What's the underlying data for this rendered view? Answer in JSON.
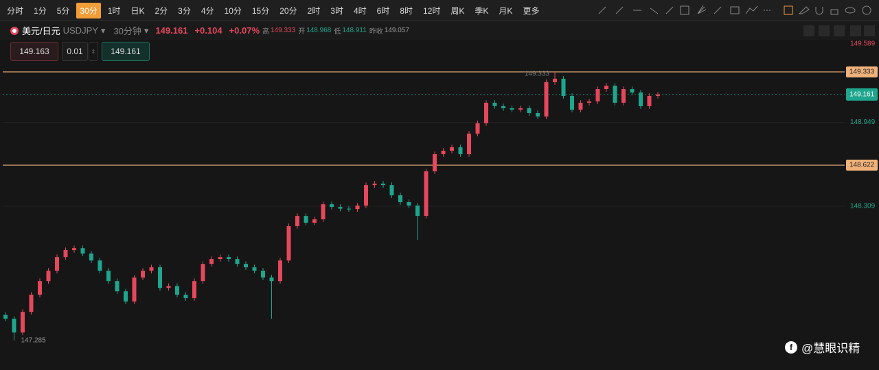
{
  "toolbar": {
    "timeframes": [
      "分时",
      "1分",
      "5分",
      "30分",
      "1时",
      "日K",
      "2分",
      "3分",
      "4分",
      "10分",
      "15分",
      "20分",
      "2时",
      "3时",
      "4时",
      "6时",
      "8时",
      "12时",
      "周K",
      "季K",
      "月K",
      "更多"
    ],
    "active": 3
  },
  "symbol_bar": {
    "name": "美元/日元",
    "code": "USDJPY",
    "period": "30分钟",
    "price": "149.161",
    "change": "+0.104",
    "change_pct": "+0.07%",
    "stats": [
      {
        "label": "高",
        "value": "149.333"
      },
      {
        "label": "开",
        "value": "148.968"
      },
      {
        "label": "低",
        "value": "148.911"
      },
      {
        "label": "昨收",
        "value": "149.057"
      }
    ]
  },
  "order": {
    "sell": "149.163",
    "lot": "0.01",
    "buy": "149.161"
  },
  "watermark": "@慧眼识精",
  "chart_data": {
    "type": "candlestick",
    "open": [
      147.48,
      147.451,
      147.346,
      147.503,
      147.634,
      147.738,
      147.817,
      147.921,
      147.974,
      147.989,
      147.948,
      147.895,
      147.817,
      147.738,
      147.66,
      147.582,
      147.765,
      147.817,
      147.843,
      147.686,
      147.7,
      147.634,
      147.608,
      147.738,
      147.869,
      147.906,
      147.921,
      147.906,
      147.869,
      147.843,
      147.817,
      147.765,
      147.738,
      147.895,
      148.157,
      148.235,
      148.183,
      148.209,
      148.324,
      148.303,
      148.29,
      148.287,
      148.314,
      148.47,
      148.481,
      148.47,
      148.392,
      148.34,
      148.314,
      148.235,
      148.575,
      148.706,
      148.732,
      148.758,
      148.706,
      148.862,
      148.941,
      149.098,
      149.072,
      149.056,
      149.045,
      149.056,
      149.019,
      148.993,
      149.255,
      149.281,
      149.15,
      149.045,
      149.098,
      149.108,
      149.202,
      149.228,
      149.098,
      149.202,
      149.176,
      149.072,
      149.15
    ],
    "high": [
      147.5,
      147.471,
      147.523,
      147.654,
      147.758,
      147.837,
      147.941,
      147.994,
      148.009,
      148.009,
      147.968,
      147.915,
      147.837,
      147.758,
      147.68,
      147.785,
      147.837,
      147.863,
      147.863,
      147.72,
      147.72,
      147.654,
      147.758,
      147.889,
      147.926,
      147.941,
      147.941,
      147.926,
      147.889,
      147.863,
      147.837,
      147.785,
      147.915,
      148.177,
      148.255,
      148.255,
      148.229,
      148.344,
      148.344,
      148.323,
      148.31,
      148.334,
      148.49,
      148.501,
      148.501,
      148.49,
      148.412,
      148.36,
      148.334,
      148.595,
      148.726,
      148.752,
      148.778,
      148.778,
      148.882,
      148.961,
      149.118,
      149.118,
      149.092,
      149.076,
      149.076,
      149.076,
      149.039,
      149.275,
      149.333,
      149.301,
      149.17,
      149.118,
      149.128,
      149.222,
      149.248,
      149.248,
      149.222,
      149.222,
      149.196,
      149.17,
      149.181
    ],
    "low": [
      147.431,
      147.285,
      147.326,
      147.483,
      147.614,
      147.718,
      147.797,
      147.901,
      147.954,
      147.928,
      147.875,
      147.797,
      147.718,
      147.64,
      147.562,
      147.562,
      147.745,
      147.797,
      147.666,
      147.666,
      147.614,
      147.588,
      147.588,
      147.718,
      147.849,
      147.886,
      147.886,
      147.849,
      147.823,
      147.797,
      147.745,
      147.451,
      147.718,
      147.875,
      148.137,
      148.163,
      148.163,
      148.189,
      148.283,
      148.27,
      148.267,
      148.267,
      148.294,
      148.45,
      148.45,
      148.372,
      148.32,
      148.294,
      148.052,
      148.215,
      148.555,
      148.686,
      148.712,
      148.686,
      148.686,
      148.842,
      148.921,
      149.052,
      149.036,
      149.025,
      149.025,
      148.999,
      148.973,
      148.973,
      149.235,
      149.13,
      149.025,
      149.025,
      149.078,
      149.088,
      149.182,
      149.078,
      149.078,
      149.156,
      149.052,
      149.052,
      149.13
    ],
    "close": [
      147.451,
      147.346,
      147.503,
      147.634,
      147.738,
      147.817,
      147.921,
      147.974,
      147.989,
      147.948,
      147.895,
      147.817,
      147.738,
      147.66,
      147.582,
      147.765,
      147.817,
      147.843,
      147.686,
      147.7,
      147.634,
      147.608,
      147.738,
      147.869,
      147.906,
      147.921,
      147.906,
      147.869,
      147.843,
      147.817,
      147.765,
      147.738,
      147.895,
      148.157,
      148.235,
      148.183,
      148.209,
      148.324,
      148.303,
      148.29,
      148.287,
      148.314,
      148.47,
      148.481,
      148.47,
      148.392,
      148.34,
      148.314,
      148.235,
      148.575,
      148.706,
      148.732,
      148.758,
      148.706,
      148.862,
      148.941,
      149.098,
      149.072,
      149.056,
      149.045,
      149.056,
      149.019,
      148.993,
      149.255,
      149.281,
      149.15,
      149.045,
      149.098,
      149.108,
      149.202,
      149.228,
      149.098,
      149.202,
      149.176,
      149.072,
      149.15,
      149.161
    ],
    "up_color": "#e5475c",
    "down_color": "#1fa58d",
    "ylim": [
      147.06,
      149.594
    ],
    "yticks": [
      149.589,
      148.949,
      148.309
    ],
    "grid": true,
    "price_lines": [
      149.333,
      148.622
    ],
    "price_line_color": "#f0b27a"
  }
}
